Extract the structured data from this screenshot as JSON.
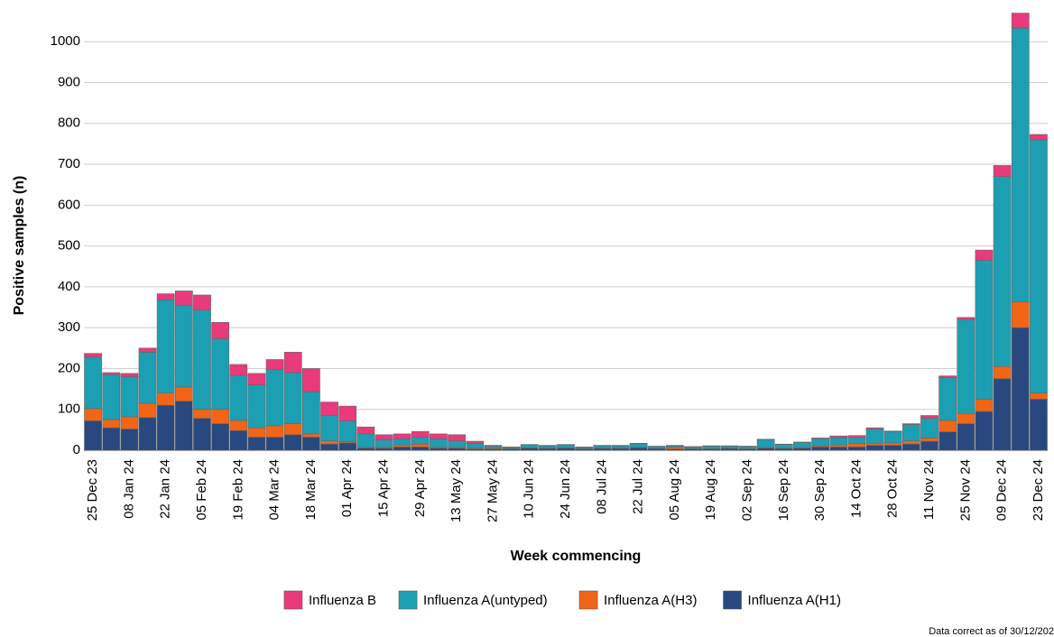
{
  "chart_data": {
    "type": "stacked_bar",
    "x_label": "Week commencing",
    "y_label": "Positive samples (n)",
    "note": "Data correct as of 30/12/202",
    "categories": [
      "25 Dec 23",
      null,
      "08 Jan 24",
      null,
      "22 Jan 24",
      null,
      "05 Feb 24",
      null,
      "19 Feb 24",
      null,
      "04 Mar 24",
      null,
      "18 Mar 24",
      null,
      "01 Apr 24",
      null,
      "15 Apr 24",
      null,
      "29 Apr 24",
      null,
      "13 May 24",
      null,
      "27 May 24",
      null,
      "10 Jun 24",
      null,
      "24 Jun 24",
      null,
      "08 Jul 24",
      null,
      "22 Jul 24",
      null,
      "05 Aug 24",
      null,
      "19 Aug 24",
      null,
      "02 Sep 24",
      null,
      "16 Sep 24",
      null,
      "30 Sep 24",
      null,
      "14 Oct 24",
      null,
      "28 Oct 24",
      null,
      "11 Nov 24",
      null,
      "25 Nov 24",
      null,
      "09 Dec 24",
      null,
      "23 Dec 24"
    ],
    "series": [
      {
        "name": "Influenza B",
        "color": "#e83a7c",
        "values": [
          9,
          5,
          8,
          10,
          15,
          35,
          37,
          40,
          27,
          28,
          25,
          50,
          57,
          33,
          36,
          17,
          13,
          12,
          14,
          12,
          15,
          5,
          2,
          1,
          1,
          1,
          1,
          1,
          1,
          1,
          1,
          1,
          1,
          1,
          1,
          1,
          1,
          1,
          1,
          1,
          2,
          4,
          5,
          3,
          2,
          2,
          7,
          4,
          5,
          25,
          27,
          37,
          13
        ]
      },
      {
        "name": "Influenza A(untyped)",
        "color": "#1c9fb2",
        "values": [
          126,
          110,
          98,
          125,
          228,
          200,
          243,
          173,
          110,
          105,
          137,
          125,
          103,
          62,
          51,
          33,
          17,
          15,
          17,
          20,
          15,
          12,
          5,
          3,
          7,
          6,
          7,
          3,
          6,
          6,
          9,
          4,
          3,
          4,
          6,
          5,
          5,
          19,
          9,
          12,
          17,
          18,
          15,
          35,
          27,
          40,
          48,
          105,
          230,
          340,
          465,
          670,
          620
        ]
      },
      {
        "name": "Influenza A(H3)",
        "color": "#f26516",
        "values": [
          30,
          20,
          30,
          35,
          30,
          35,
          22,
          35,
          25,
          23,
          28,
          27,
          8,
          8,
          3,
          2,
          3,
          5,
          7,
          3,
          3,
          2,
          2,
          1,
          1,
          1,
          1,
          1,
          1,
          1,
          1,
          1,
          5,
          1,
          1,
          1,
          1,
          2,
          1,
          2,
          3,
          5,
          8,
          5,
          6,
          8,
          8,
          28,
          25,
          30,
          30,
          63,
          15
        ]
      },
      {
        "name": "Influenza A(H1)",
        "color": "#28487f",
        "values": [
          72,
          55,
          52,
          80,
          110,
          120,
          78,
          65,
          48,
          32,
          32,
          38,
          32,
          15,
          18,
          5,
          5,
          8,
          8,
          5,
          5,
          3,
          3,
          3,
          5,
          4,
          5,
          3,
          4,
          4,
          6,
          4,
          3,
          3,
          3,
          4,
          3,
          5,
          4,
          5,
          8,
          8,
          8,
          12,
          12,
          15,
          22,
          45,
          65,
          95,
          175,
          300,
          125
        ]
      }
    ],
    "ylim": [
      0,
      1080
    ],
    "yticks": [
      0,
      100,
      200,
      300,
      400,
      500,
      600,
      700,
      800,
      900,
      1000
    ],
    "grid": true
  }
}
